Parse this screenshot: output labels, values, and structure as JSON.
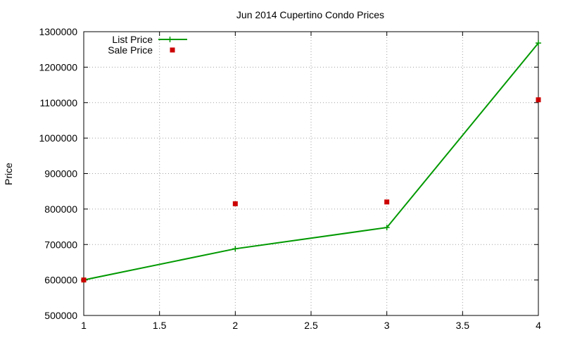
{
  "chart_data": {
    "type": "line",
    "title": "Jun 2014 Cupertino Condo Prices",
    "xlabel": "",
    "ylabel": "Price",
    "xlim": [
      1,
      4
    ],
    "ylim": [
      500000,
      1300000
    ],
    "xticks": [
      "1",
      "1.5",
      "2",
      "2.5",
      "3",
      "3.5",
      "4"
    ],
    "yticks": [
      "500000",
      "600000",
      "700000",
      "800000",
      "900000",
      "1000000",
      "1100000",
      "1200000",
      "1300000"
    ],
    "grid": true,
    "legend_position": "top-left",
    "series": [
      {
        "name": "List Price",
        "style": "lines+points",
        "color": "#009900",
        "x": [
          1,
          2,
          3,
          4
        ],
        "y": [
          600000,
          688000,
          748000,
          1268000
        ]
      },
      {
        "name": "Sale Price",
        "style": "points",
        "color": "#cc0000",
        "x": [
          1,
          2,
          3,
          4
        ],
        "y": [
          600000,
          815000,
          820000,
          1108000
        ]
      }
    ]
  }
}
